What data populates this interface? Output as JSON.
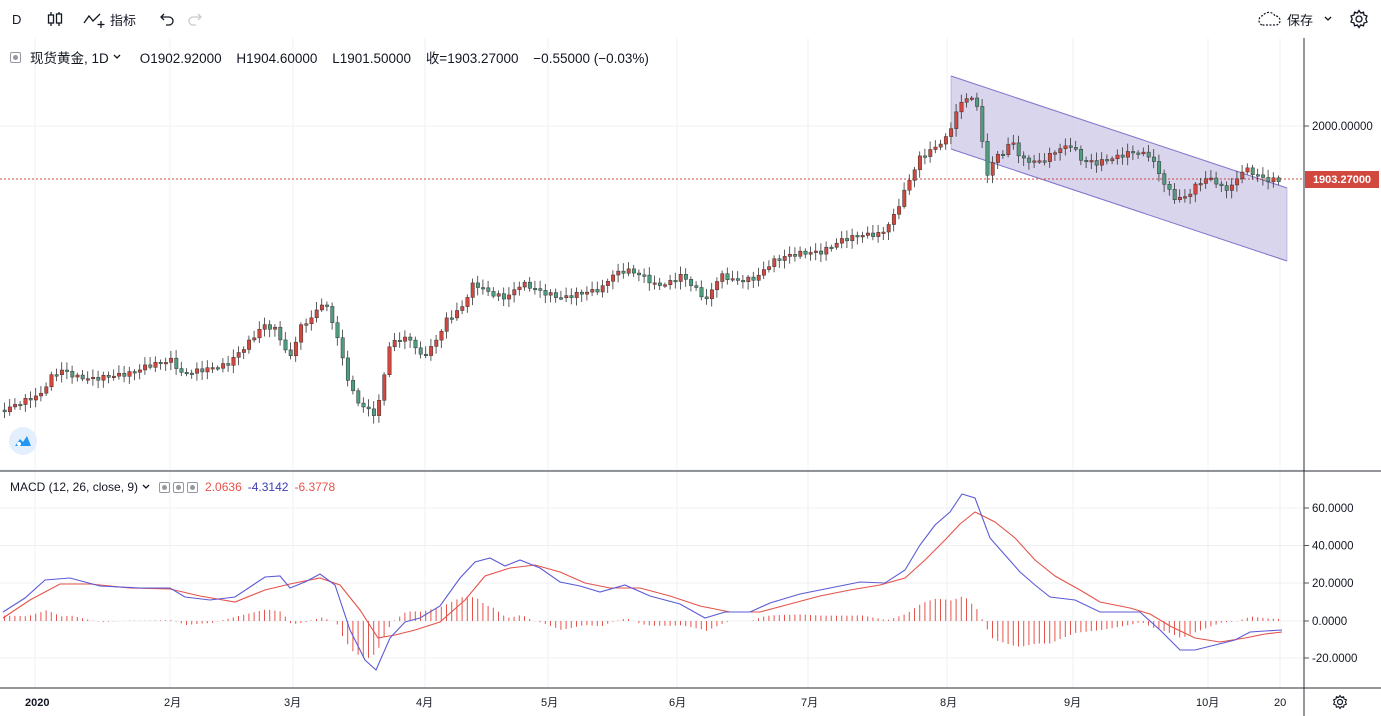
{
  "toolbar": {
    "interval": "D",
    "indicators_label": "指标",
    "save_label": "保存"
  },
  "legend": {
    "symbol": "现货黄金, 1D",
    "open": "O1902.92000",
    "high": "H1904.60000",
    "low": "L1901.50000",
    "close": "收=1903.27000",
    "change": "−0.55000 (−0.03%)"
  },
  "macd_legend": {
    "title": "MACD (12, 26, close, 9)",
    "hist": "2.0636",
    "macd": "-4.3142",
    "signal": "-6.3778"
  },
  "price_axis": {
    "labels": [
      "2000.00000"
    ],
    "last_price": "1903.27000"
  },
  "macd_axis": {
    "labels": [
      "60.0000",
      "40.0000",
      "20.0000",
      "0.0000",
      "-20.0000"
    ]
  },
  "time_axis": {
    "labels": [
      "2020",
      "2月",
      "3月",
      "4月",
      "5月",
      "6月",
      "7月",
      "8月",
      "9月",
      "10月",
      "20"
    ]
  },
  "colors": {
    "up": "#26a69a",
    "down": "#ef5350",
    "candle_up_fill": "#d1483f",
    "candle_down_fill": "#4f9c7e",
    "macd_line": "#5b5bd6",
    "signal_line": "#e5534b",
    "channel_fill": "#cfcbe9",
    "channel_border": "#7f72c9",
    "last_price": "#d1483f"
  },
  "icons": {
    "candles": "candles-icon",
    "indicators": "indicators-icon",
    "undo": "undo-icon",
    "redo": "redo-icon",
    "cloud": "cloud-icon",
    "settings": "gear-icon"
  }
}
